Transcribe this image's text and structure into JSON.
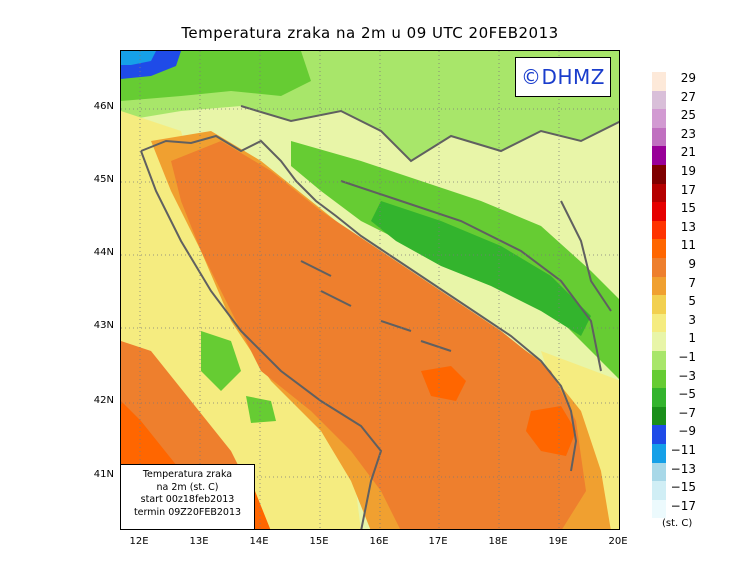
{
  "title": "Temperatura zraka na 2m u 09 UTC 20FEB2013",
  "logo": "©DHMZ",
  "info_box": {
    "line1": "Temperatura zraka",
    "line2": "na 2m (st. C)",
    "line3": "start 00z18feb2013",
    "line4": "termin 09Z20FEB2013"
  },
  "lat_labels": [
    "46N",
    "45N",
    "44N",
    "43N",
    "42N",
    "41N"
  ],
  "lon_labels": [
    "12E",
    "13E",
    "14E",
    "15E",
    "16E",
    "17E",
    "18E",
    "19E",
    "20E"
  ],
  "legend": {
    "unit": "(st. C)",
    "labels": [
      "29",
      "27",
      "25",
      "23",
      "21",
      "19",
      "17",
      "15",
      "13",
      "11",
      "9",
      "7",
      "5",
      "3",
      "1",
      "−1",
      "−3",
      "−5",
      "−7",
      "−9",
      "−11",
      "−13",
      "−15",
      "−17"
    ],
    "colors": [
      "#fde9d9",
      "#d9bfd9",
      "#d29ad2",
      "#c070c0",
      "#990099",
      "#7f0000",
      "#b50000",
      "#e60000",
      "#ff3300",
      "#ff6600",
      "#ee7f2d",
      "#f0a030",
      "#f2d050",
      "#f5ec80",
      "#e8f5a8",
      "#a8e66a",
      "#66cc33",
      "#33b42d",
      "#1a8f1a",
      "#1f4be8",
      "#16a0e8",
      "#a8d8e8",
      "#d0eef5",
      "#ecfafd"
    ]
  },
  "colors": {
    "sea_warm": "#ee7f2d",
    "sea_hot": "#ff6600",
    "coast_mild": "#f0a030",
    "land_yellow": "#f5ec80",
    "land_light": "#e8f5a8",
    "land_green": "#a8e66a",
    "land_mid_green": "#66cc33",
    "land_dark_green": "#33b42d",
    "cold_blue": "#1f4be8",
    "border": "#606060"
  }
}
